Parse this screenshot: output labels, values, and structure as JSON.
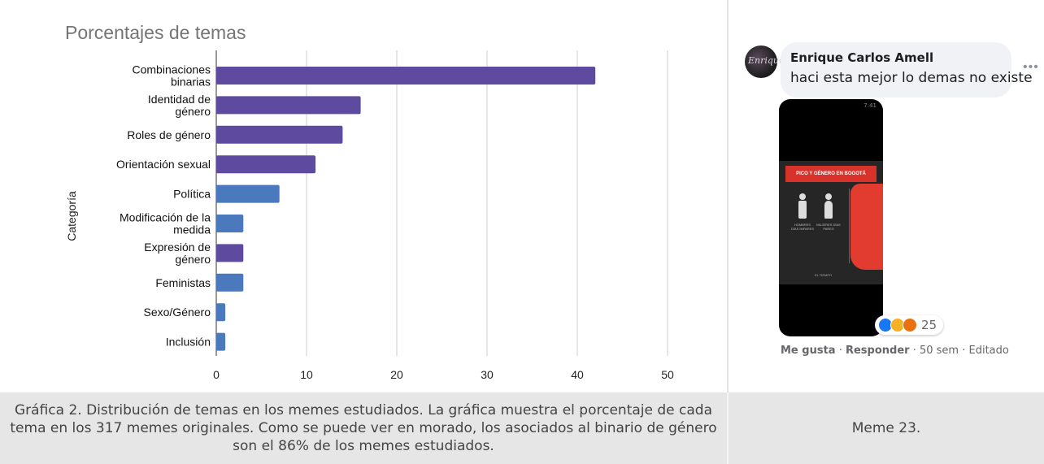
{
  "chart_data": {
    "type": "bar",
    "orientation": "horizontal",
    "title": "Porcentajes de temas",
    "ylabel": "Categoría",
    "xlabel": "",
    "categories": [
      [
        "Combinaciones",
        "binarias"
      ],
      [
        "Identidad de",
        "género"
      ],
      [
        "Roles de género"
      ],
      [
        "Orientación sexual"
      ],
      [
        "Política"
      ],
      [
        "Modificación de la",
        "medida"
      ],
      [
        "Expresión de",
        "género"
      ],
      [
        "Feministas"
      ],
      [
        "Sexo/Género"
      ],
      [
        "Inclusión"
      ]
    ],
    "values": [
      42,
      16,
      14,
      11,
      7,
      3,
      3,
      3,
      1,
      1
    ],
    "groups": [
      "binary",
      "binary",
      "binary",
      "binary",
      "other",
      "other",
      "binary",
      "other",
      "other",
      "other"
    ],
    "colors": {
      "binary": "#5e4a9e",
      "other": "#4a79bd"
    },
    "xlim": [
      0,
      50
    ],
    "xticks": [
      0,
      10,
      20,
      30,
      40,
      50
    ],
    "grid": "vertical"
  },
  "meme": {
    "author": "Enrique Carlos Amell",
    "text": "haci esta mejor lo demas no existe",
    "avatar_text": "Enrique",
    "phone_status": "7:41",
    "poster_title": "PICO Y GÉNERO EN BOGOTÁ",
    "poster_caption_left": "HOMBRES DÍAS IMPARES",
    "poster_caption_right": "MUJERES DÍAS PARES",
    "poster_footer": "EL TIEMPO",
    "reaction_count": "25",
    "like": "Me gusta",
    "sep1": " · ",
    "reply": "Responder",
    "sep2": " · ",
    "time": "50 sem",
    "sep3": " · ",
    "edited": "Editado",
    "more_icon": "ellipsis-icon"
  },
  "captions": {
    "chart": "Gráfica 2. Distribución de temas en los memes estudiados. La gráfica muestra el porcentaje de cada tema en los 317 memes originales. Como se puede ver en morado, los asociados al binario de género son el 86% de los memes estudiados.",
    "meme": "Meme 23."
  }
}
